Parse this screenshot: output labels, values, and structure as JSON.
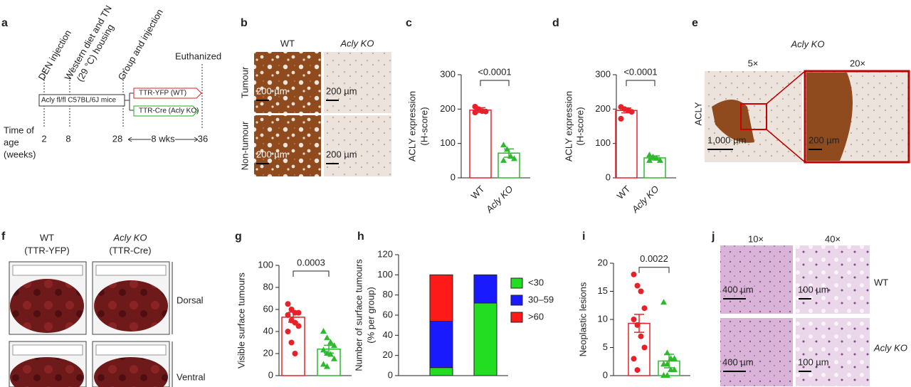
{
  "panel_labels": [
    "a",
    "b",
    "c",
    "d",
    "e",
    "f",
    "g",
    "h",
    "i",
    "j"
  ],
  "panel_a": {
    "den": "DEN injection",
    "diet": [
      "Western diet and TN",
      "(29 °C) housing"
    ],
    "group": "Group and injection",
    "euthanized": "Euthanized",
    "mice": "Acly fl/fl C57BL/6J mice",
    "wt_arm": "TTR-YFP (WT)",
    "ko_arm": "TTR-Cre (Acly KO)",
    "time_label": [
      "Time of",
      "age",
      "(weeks)"
    ],
    "weeks": [
      "2",
      "8",
      "28",
      "36"
    ],
    "duration": "8 wks"
  },
  "panel_b": {
    "columns": [
      "WT",
      "Acly KO"
    ],
    "rows": [
      "Tumour",
      "Non-tumour"
    ],
    "scale": "200 µm"
  },
  "panel_e": {
    "title": "Acly KO",
    "mag_left": "5×",
    "mag_right": "20×",
    "stain": "ACLY",
    "scale_left": "1,000 µm",
    "scale_right": "200 µm"
  },
  "panel_f": {
    "columns": [
      "WT",
      "(TTR-YFP)",
      "Acly KO",
      "(TTR-Cre)"
    ],
    "views": [
      "Dorsal",
      "Ventral"
    ]
  },
  "panel_j": {
    "mags": [
      "10×",
      "40×"
    ],
    "rows": [
      "WT",
      "Acly KO"
    ],
    "scale_low": "400 µm",
    "scale_high": "100 µm"
  },
  "chart_data": [
    {
      "type": "bar_scatter",
      "ylabel": [
        "ACLY expression",
        "(H-score)"
      ],
      "categories": [
        "WT",
        "Acly KO"
      ],
      "colors": [
        "#e8202a",
        "#2eb82e"
      ],
      "markers": [
        "circle",
        "triangle"
      ],
      "values": [
        197,
        72
      ],
      "errors": [
        7,
        12
      ],
      "points": [
        [
          207,
          200,
          194,
          193,
          190
        ],
        [
          95,
          82,
          62,
          55,
          50
        ]
      ],
      "ylim": [
        0,
        300
      ],
      "yticks": [
        0,
        100,
        200,
        300
      ],
      "annotation": "<0.0001"
    },
    {
      "type": "bar_scatter",
      "ylabel": [
        "ACLY expression",
        "(H-score)"
      ],
      "categories": [
        "WT",
        "Acly KO"
      ],
      "colors": [
        "#e8202a",
        "#2eb82e"
      ],
      "markers": [
        "circle",
        "triangle"
      ],
      "values": [
        196,
        58
      ],
      "errors": [
        7,
        6
      ],
      "points": [
        [
          206,
          200,
          197,
          192,
          172
        ],
        [
          66,
          60,
          56,
          50,
          50
        ]
      ],
      "ylim": [
        0,
        300
      ],
      "yticks": [
        0,
        100,
        200,
        300
      ],
      "annotation": "<0.0001"
    },
    {
      "type": "bar_scatter",
      "ylabel": [
        "Visible surface tumours"
      ],
      "categories": [
        null,
        null
      ],
      "colors": [
        "#e8202a",
        "#2eb82e"
      ],
      "markers": [
        "circle",
        "triangle"
      ],
      "values": [
        53,
        24
      ],
      "errors": [
        4.5,
        3.5
      ],
      "points": [
        [
          65,
          60,
          57,
          57,
          55,
          50,
          48,
          45,
          40,
          30,
          20
        ],
        [
          40,
          34,
          30,
          27,
          23,
          20,
          19,
          15,
          10,
          8
        ]
      ],
      "ylim": [
        0,
        100
      ],
      "yticks": [
        0,
        20,
        40,
        60,
        80,
        100
      ],
      "annotation": "0.0003"
    },
    {
      "type": "stacked_bar",
      "ylabel": [
        "Number of surface tumours",
        "(% per group)"
      ],
      "categories": [
        null,
        null
      ],
      "series": [
        {
          "name": "<30",
          "color": "#22dd22",
          "values": [
            8,
            72
          ]
        },
        {
          "name": "30–59",
          "color": "#1a1aff",
          "values": [
            46,
            28
          ]
        },
        {
          "name": ">60",
          "color": "#ff1a1a",
          "values": [
            46,
            0
          ]
        }
      ],
      "ylim": [
        0,
        120
      ],
      "yticks": [
        0,
        20,
        40,
        60,
        80,
        100,
        120
      ]
    },
    {
      "type": "bar_scatter",
      "ylabel": [
        "Neoplastic lesions"
      ],
      "categories": [
        null,
        null
      ],
      "colors": [
        "#e8202a",
        "#2eb82e"
      ],
      "markers": [
        "circle",
        "triangle"
      ],
      "values": [
        9.3,
        2.6
      ],
      "errors": [
        1.6,
        1.2
      ],
      "points": [
        [
          18,
          16,
          15,
          12,
          10,
          9,
          7,
          5,
          3,
          1
        ],
        [
          13,
          4,
          3,
          3,
          2,
          2,
          1,
          1,
          0,
          0
        ]
      ],
      "ylim": [
        0,
        20
      ],
      "yticks": [
        0,
        5,
        10,
        15,
        20
      ],
      "annotation": "0.0022"
    }
  ]
}
